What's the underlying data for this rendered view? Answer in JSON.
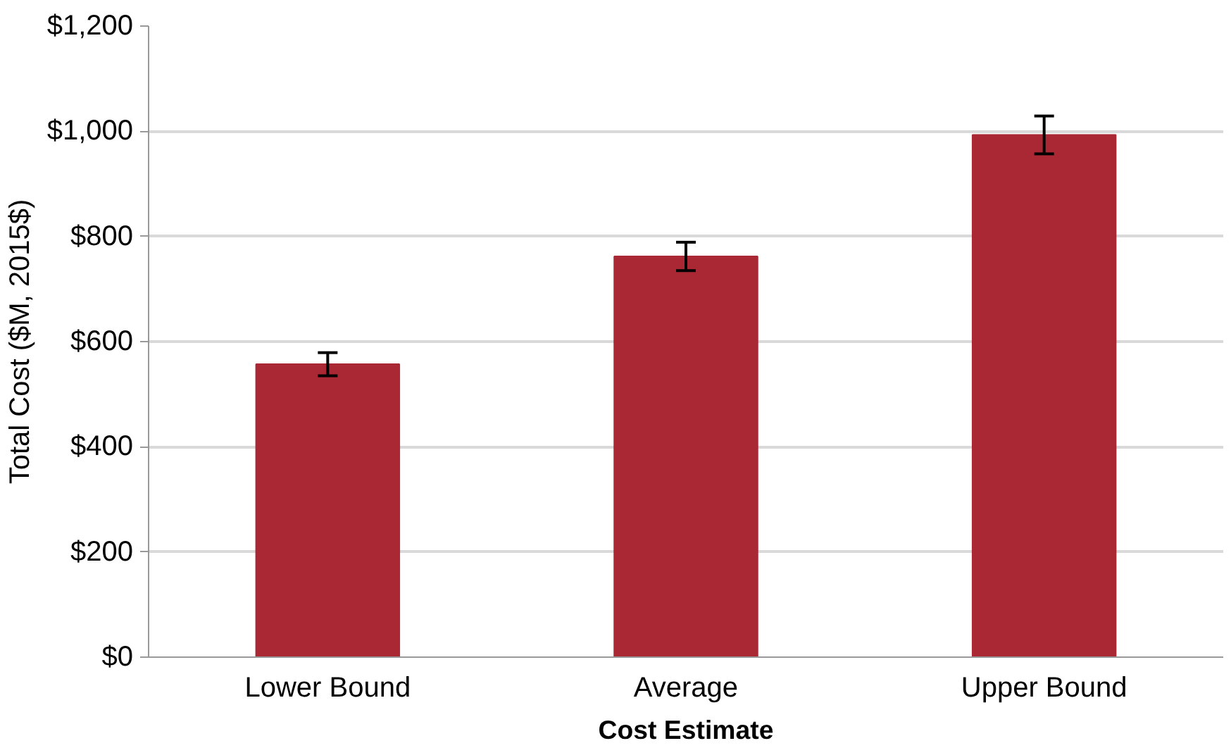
{
  "chart_data": {
    "type": "bar",
    "xlabel": "Cost Estimate",
    "ylabel": "Total Cost ($M, 2015$)",
    "categories": [
      "Lower Bound",
      "Average",
      "Upper Bound"
    ],
    "values": [
      557,
      762,
      993
    ],
    "errors": [
      22,
      27,
      36
    ],
    "color": "#a92834",
    "ylim": [
      0,
      1200
    ],
    "yticks": [
      {
        "value": 0,
        "label": "$0"
      },
      {
        "value": 200,
        "label": "$200"
      },
      {
        "value": 400,
        "label": "$400"
      },
      {
        "value": 600,
        "label": "$600"
      },
      {
        "value": 800,
        "label": "$800"
      },
      {
        "value": 1000,
        "label": "$1,000"
      },
      {
        "value": 1200,
        "label": "$1,200"
      }
    ],
    "grid": "y"
  }
}
